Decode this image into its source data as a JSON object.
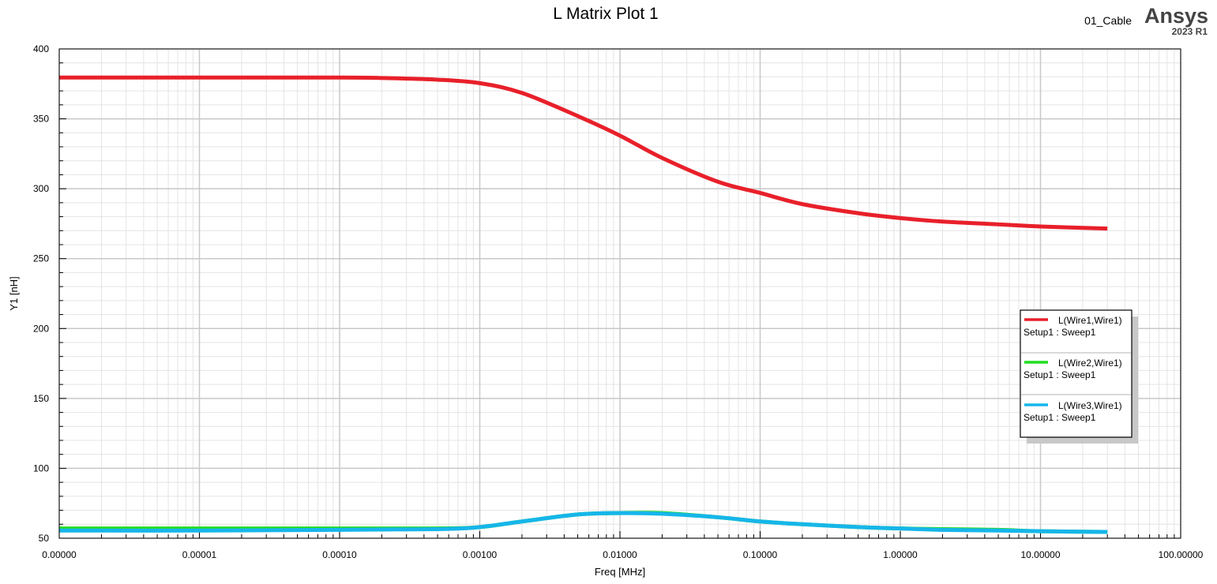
{
  "header": {
    "design_name": "01_Cable",
    "brand": "Ansys",
    "version": "2023 R1"
  },
  "colors": {
    "wire1": "#e8202a",
    "wire2": "#22dd22",
    "wire3": "#16b6ea",
    "grid_major": "#c8c8c8",
    "grid_minor": "#e4e4e4"
  },
  "chart_data": {
    "type": "line",
    "title": "L Matrix Plot 1",
    "xlabel": "Freq [MHz]",
    "ylabel": "Y1 [nH]",
    "xscale": "log",
    "xlim": [
      1e-06,
      100
    ],
    "ylim": [
      50,
      400
    ],
    "xtick_values": [
      1e-06,
      1e-05,
      0.0001,
      0.001,
      0.01,
      0.1,
      1,
      10,
      100
    ],
    "xtick_labels": [
      "0.00000",
      "0.00001",
      "0.00010",
      "0.00100",
      "0.01000",
      "0.10000",
      "1.00000",
      "10.00000",
      "100.00000"
    ],
    "ytick_values": [
      50,
      100,
      150,
      200,
      250,
      300,
      350,
      400
    ],
    "ytick_labels": [
      "50",
      "100",
      "150",
      "200",
      "250",
      "300",
      "350",
      "400"
    ],
    "grid": true,
    "legend_position": "right",
    "series": [
      {
        "name": "L(Wire1,Wire1)",
        "setup": "Setup1 : Sweep1",
        "x": [
          1e-06,
          1e-05,
          0.0001,
          0.0002,
          0.0005,
          0.001,
          0.002,
          0.005,
          0.01,
          0.02,
          0.05,
          0.1,
          0.2,
          0.5,
          1,
          2,
          5,
          10,
          30
        ],
        "y": [
          379.5,
          379.5,
          379.5,
          379.2,
          378,
          375.5,
          368.5,
          352,
          338,
          322,
          305,
          297,
          289,
          282.5,
          279,
          276.5,
          274.5,
          273,
          271.5
        ]
      },
      {
        "name": "L(Wire2,Wire1)",
        "setup": "Setup1 : Sweep1",
        "x": [
          1e-06,
          1e-05,
          0.0001,
          0.0005,
          0.001,
          0.002,
          0.005,
          0.01,
          0.02,
          0.05,
          0.1,
          0.2,
          0.5,
          1,
          2,
          5,
          10,
          30
        ],
        "y": [
          57,
          57,
          57,
          57,
          58,
          62,
          67,
          68,
          68,
          65,
          62,
          60,
          58,
          57,
          56.5,
          56,
          55,
          54.5
        ]
      },
      {
        "name": "L(Wire3,Wire1)",
        "setup": "Setup1 : Sweep1",
        "x": [
          1e-06,
          1e-05,
          0.0001,
          0.0005,
          0.001,
          0.002,
          0.005,
          0.01,
          0.02,
          0.05,
          0.1,
          0.2,
          0.5,
          1,
          2,
          5,
          10,
          30
        ],
        "y": [
          55.5,
          55.5,
          56,
          56.5,
          58,
          62,
          67,
          68,
          67.5,
          65,
          62,
          60,
          58,
          57,
          56,
          55.5,
          55,
          54.5
        ]
      }
    ]
  }
}
